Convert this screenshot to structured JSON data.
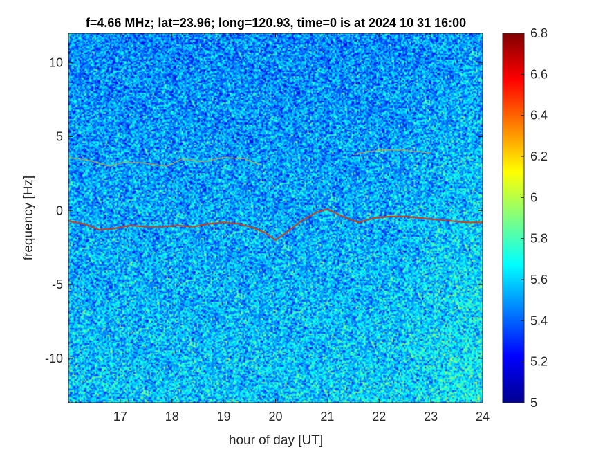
{
  "chart_data": {
    "type": "heatmap",
    "title": "f=4.66 MHz;  lat=23.96; long=120.93, time=0 is at 2024 10 31 16:00",
    "xlabel": "hour of day [UT]",
    "ylabel": "frequency [Hz]",
    "xlim": [
      16,
      24
    ],
    "ylim": [
      -13,
      12
    ],
    "xticks": [
      17,
      18,
      19,
      20,
      21,
      22,
      23,
      24
    ],
    "xtick_labels": [
      "17",
      "18",
      "19",
      "20",
      "21",
      "22",
      "23",
      "24"
    ],
    "yticks": [
      10,
      5,
      0,
      -5,
      -10
    ],
    "ytick_labels": [
      "10",
      "5",
      "0",
      "-5",
      "-10"
    ],
    "colorbar": {
      "range": [
        5,
        6.8
      ],
      "ticks": [
        6.8,
        6.6,
        6.4,
        6.2,
        6,
        5.8,
        5.6,
        5.4,
        5.2,
        5
      ],
      "tick_labels": [
        "6.8",
        "6.6",
        "6.4",
        "6.2",
        "6",
        "5.8",
        "5.6",
        "5.4",
        "5.2",
        "5"
      ],
      "colormap": "jet"
    },
    "series": [
      {
        "x": [
          16.0,
          16.3,
          16.6,
          16.9,
          17.2,
          17.5,
          17.8,
          18.1,
          18.4,
          18.7,
          19.0,
          19.3,
          19.6,
          19.8
        ],
        "y": [
          -0.7,
          -0.9,
          -1.3,
          -1.2,
          -1.0,
          -1.1,
          -1.1,
          -1.0,
          -1.1,
          -0.9,
          -0.8,
          -0.9,
          -1.2,
          -1.5
        ]
      },
      {
        "x": [
          19.8,
          20.0,
          20.2,
          20.5,
          20.8,
          21.0,
          21.3,
          21.6,
          21.9,
          22.2,
          22.5,
          22.8,
          23.1,
          23.4,
          23.7,
          24.0
        ],
        "y": [
          -1.5,
          -2.0,
          -1.5,
          -0.7,
          -0.1,
          0.1,
          -0.4,
          -0.8,
          -0.5,
          -0.4,
          -0.4,
          -0.5,
          -0.6,
          -0.7,
          -0.8,
          -0.8
        ]
      },
      {
        "x": [
          16.0,
          16.4,
          16.8,
          17.1,
          17.5,
          17.9,
          18.2,
          18.6,
          19.0,
          19.4,
          19.7
        ],
        "y": [
          3.6,
          3.4,
          3.0,
          3.3,
          3.2,
          3.0,
          3.5,
          3.3,
          3.6,
          3.5,
          3.1
        ]
      },
      {
        "x": [
          21.5,
          21.8,
          22.1,
          22.4,
          22.7,
          23.0
        ],
        "y": [
          3.8,
          4.0,
          4.1,
          4.1,
          4.0,
          3.9
        ]
      }
    ],
    "grid": false
  }
}
